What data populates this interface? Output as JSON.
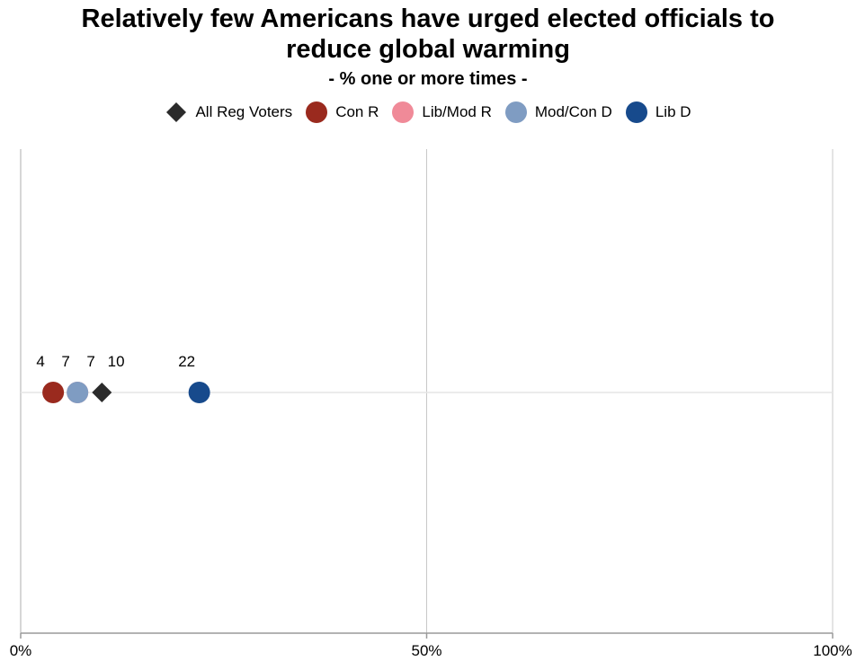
{
  "chart_data": {
    "type": "scatter",
    "title_line1": "Relatively few Americans have urged elected officials to",
    "title_line2": "reduce global warming",
    "subtitle": "- % one or more times -",
    "xlabel": "",
    "ylabel": "",
    "xlim": [
      0,
      100
    ],
    "x_ticks": [
      "0%",
      "50%",
      "100%"
    ],
    "x_tick_values": [
      0,
      50,
      100
    ],
    "grid": true,
    "legend_placement": "top-center",
    "series": [
      {
        "name": "All Reg Voters",
        "value": 10,
        "label": "10",
        "marker": "diamond",
        "color": "#2b2b2b"
      },
      {
        "name": "Con R",
        "value": 4,
        "label": "4",
        "marker": "circle",
        "color": "#9a2a1e"
      },
      {
        "name": "Lib/Mod R",
        "value": 7,
        "label": "7",
        "marker": "circle",
        "color": "#f08a98"
      },
      {
        "name": "Mod/Con D",
        "value": 7,
        "label": "7",
        "marker": "circle",
        "color": "#7f9cc2"
      },
      {
        "name": "Lib D",
        "value": 22,
        "label": "22",
        "marker": "circle",
        "color": "#174a8c"
      }
    ]
  }
}
